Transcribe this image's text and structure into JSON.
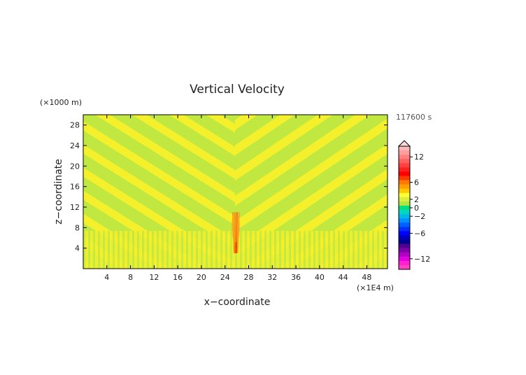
{
  "chart_data": {
    "type": "heatmap",
    "title": "Vertical Velocity",
    "xlabel": "x−coordinate",
    "ylabel": "z−coordinate",
    "x_unit": "(×1E4 m)",
    "y_unit": "(×1000 m)",
    "time_label": "117600 s",
    "xlim": [
      0,
      51.5
    ],
    "ylim": [
      0,
      30
    ],
    "x_ticks": [
      4,
      8,
      12,
      16,
      20,
      24,
      28,
      32,
      36,
      40,
      44,
      48
    ],
    "y_ticks": [
      4,
      8,
      12,
      16,
      20,
      24,
      28
    ],
    "x_tick_labels": [
      "4",
      "8",
      "12",
      "16",
      "20",
      "24",
      "28",
      "32",
      "36",
      "40",
      "44",
      "48"
    ],
    "y_tick_labels": [
      "4",
      "8",
      "12",
      "16",
      "20",
      "24",
      "28"
    ],
    "pattern": {
      "background_level": 0.5,
      "stripe_level": 1.5,
      "updraft_core_x": 25.8,
      "updraft_core_z": [
        3,
        11
      ],
      "updraft_max": 4
    },
    "colorbar": {
      "labels": [
        "12",
        "6",
        "2",
        "0",
        "−2",
        "−6",
        "−12"
      ],
      "label_values": [
        12,
        6,
        2,
        0,
        -2,
        -6,
        -12
      ],
      "levels": [
        14,
        13,
        12,
        11,
        10,
        9,
        8,
        7,
        6,
        5,
        4,
        3,
        2,
        1,
        0,
        -1,
        -2,
        -3,
        -4,
        -5,
        -6,
        -7,
        -8,
        -9,
        -10,
        -11,
        -12,
        -13,
        -14
      ],
      "colors": [
        "#ffb8b8",
        "#ff9c9c",
        "#ff8080",
        "#ff6060",
        "#ff4040",
        "#ff2020",
        "#ff0000",
        "#ff3c00",
        "#ff7800",
        "#ffa000",
        "#ffc800",
        "#ffff33",
        "#d8f040",
        "#b0e640",
        "#00e080",
        "#00d8c0",
        "#00b8e8",
        "#0090ff",
        "#0060ff",
        "#0030ff",
        "#0000ff",
        "#0000c0",
        "#000090",
        "#500090",
        "#8000a8",
        "#b000c0",
        "#e000e0",
        "#ff20d0",
        "#ff40c0"
      ]
    }
  }
}
